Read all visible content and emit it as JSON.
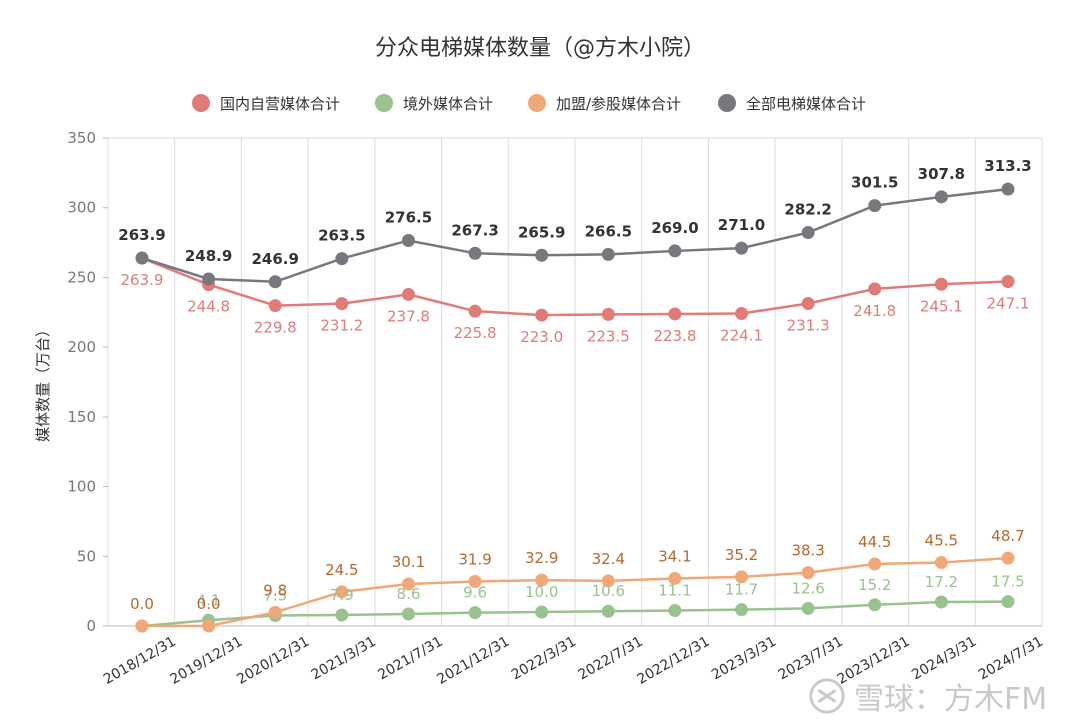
{
  "chart_data": {
    "type": "line",
    "title": "分众电梯媒体数量（@方木小院）",
    "ylabel": "媒体数量（万台）",
    "ylim": [
      0,
      350
    ],
    "yticks": [
      0,
      50,
      100,
      150,
      200,
      250,
      300,
      350
    ],
    "grid": true,
    "legend_position": "top",
    "categories": [
      "2018/12/31",
      "2019/12/31",
      "2020/12/31",
      "2021/3/31",
      "2021/7/31",
      "2021/12/31",
      "2022/3/31",
      "2022/7/31",
      "2022/12/31",
      "2023/3/31",
      "2023/7/31",
      "2023/12/31",
      "2024/3/31",
      "2024/7/31"
    ],
    "series": [
      {
        "name": "国内自营媒体合计",
        "color": "#e07b78",
        "label_color": "#e07b78",
        "values": [
          263.9,
          244.8,
          229.8,
          231.2,
          237.8,
          225.8,
          223.0,
          223.5,
          223.8,
          224.1,
          231.3,
          241.8,
          245.1,
          247.1
        ],
        "labels": [
          "263.9",
          "244.8",
          "229.8",
          "231.2",
          "237.8",
          "225.8",
          "223.0",
          "223.5",
          "223.8",
          "224.1",
          "231.3",
          "241.8",
          "245.1",
          "247.1"
        ]
      },
      {
        "name": "境外媒体合计",
        "color": "#98c28e",
        "label_color": "#98c28e",
        "values": [
          0.0,
          4.1,
          7.5,
          7.9,
          8.6,
          9.6,
          10.0,
          10.6,
          11.1,
          11.7,
          12.6,
          15.2,
          17.2,
          17.5
        ],
        "labels": [
          "",
          "4.1",
          "7.5",
          "7.9",
          "8.6",
          "9.6",
          "10.0",
          "10.6",
          "11.1",
          "11.7",
          "12.6",
          "15.2",
          "17.2",
          "17.5"
        ]
      },
      {
        "name": "加盟/参股媒体合计",
        "color": "#f0a878",
        "label_color": "#b8672e",
        "values": [
          0.0,
          0.0,
          9.8,
          24.5,
          30.1,
          31.9,
          32.9,
          32.4,
          34.1,
          35.2,
          38.3,
          44.5,
          45.5,
          48.7
        ],
        "labels": [
          "0.0",
          "0.0",
          "9.8",
          "24.5",
          "30.1",
          "31.9",
          "32.9",
          "32.4",
          "34.1",
          "35.2",
          "38.3",
          "44.5",
          "45.5",
          "48.7"
        ]
      },
      {
        "name": "全部电梯媒体合计",
        "color": "#77777d",
        "label_color": "#333333",
        "values": [
          263.9,
          248.9,
          246.9,
          263.5,
          276.5,
          267.3,
          265.9,
          266.5,
          269.0,
          271.0,
          282.2,
          301.5,
          307.8,
          313.3
        ],
        "labels": [
          "263.9",
          "248.9",
          "246.9",
          "263.5",
          "276.5",
          "267.3",
          "265.9",
          "266.5",
          "269.0",
          "271.0",
          "282.2",
          "301.5",
          "307.8",
          "313.3"
        ]
      }
    ]
  },
  "watermark": {
    "text": "雪球：方木FM",
    "icon": "xueqiu-logo-icon"
  }
}
